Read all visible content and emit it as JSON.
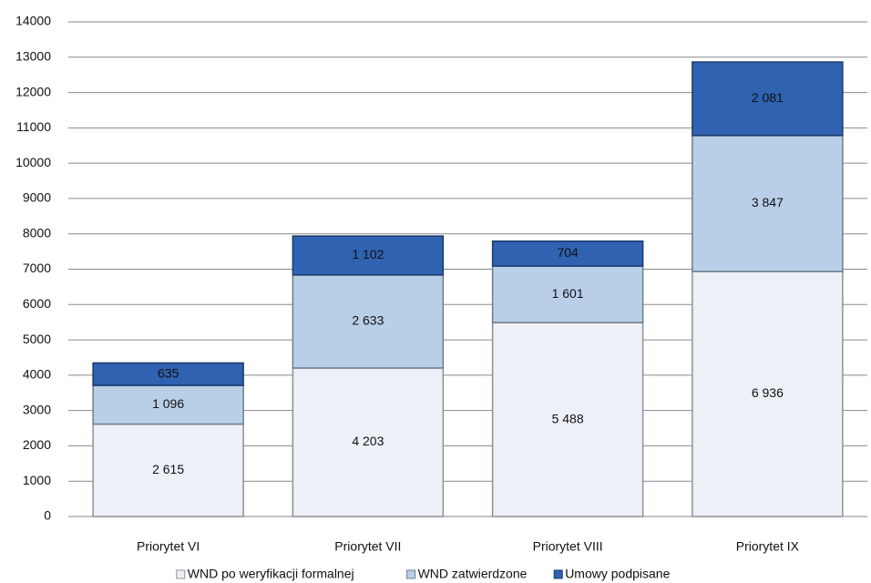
{
  "chart_data": {
    "type": "stacked_bar",
    "categories": [
      "Priorytet VI",
      "Priorytet VII",
      "Priorytet VIII",
      "Priorytet IX"
    ],
    "series": [
      {
        "name": "WND po weryfikacji formalnej",
        "color": "#eef0f8",
        "values": [
          2615,
          4203,
          5488,
          6936
        ],
        "value_labels": [
          "2 615",
          "4 203",
          "5 488",
          "6 936"
        ]
      },
      {
        "name": "WND zatwierdzone",
        "color": "#b9cfe8",
        "values": [
          1096,
          2633,
          1601,
          3847
        ],
        "value_labels": [
          "1 096",
          "2 633",
          "1 601",
          "3 847"
        ]
      },
      {
        "name": "Umowy podpisane",
        "color": "#2f62b0",
        "values": [
          635,
          1102,
          704,
          2081
        ],
        "value_labels": [
          "635",
          "1 102",
          "704",
          "2 081"
        ]
      }
    ],
    "ylim": [
      0,
      14000
    ],
    "yticks": [
      0,
      1000,
      2000,
      3000,
      4000,
      5000,
      6000,
      7000,
      8000,
      9000,
      10000,
      11000,
      12000,
      13000,
      14000
    ],
    "grid": true,
    "legend": "bottom"
  }
}
